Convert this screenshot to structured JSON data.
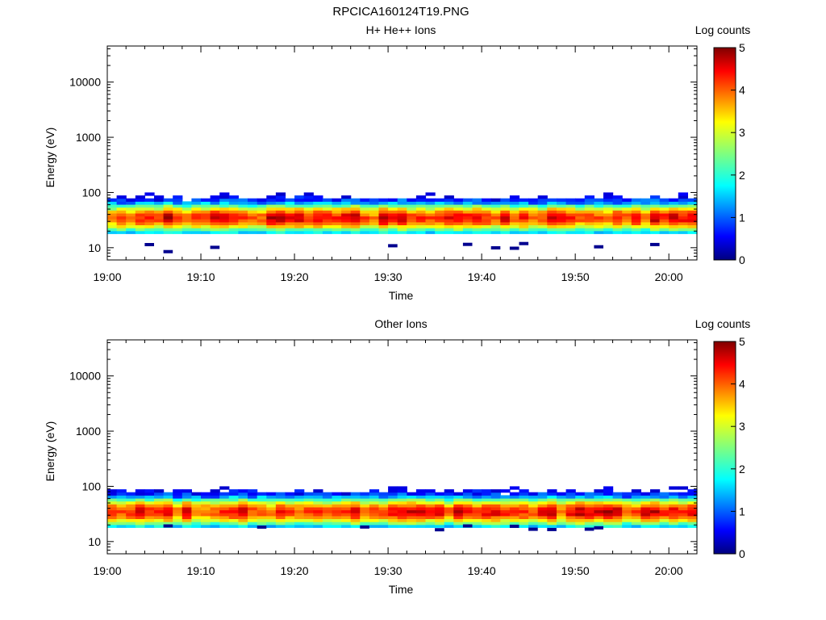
{
  "figure_title": "RPCICA160124T19.PNG",
  "chart_data": [
    {
      "type": "heatmap",
      "title": "H+ He++ Ions",
      "xlabel": "Time",
      "ylabel": "Energy (eV)",
      "x_ticks": [
        "19:00",
        "19:10",
        "19:20",
        "19:30",
        "19:40",
        "19:50",
        "20:00"
      ],
      "xlim": [
        "19:00",
        "20:03"
      ],
      "y_scale": "log",
      "y_ticks": [
        10,
        100,
        1000,
        10000
      ],
      "ylim": [
        6,
        45000
      ],
      "colorbar": {
        "label": "Log counts",
        "ticks": [
          0,
          1,
          2,
          3,
          4,
          5
        ],
        "range": [
          0,
          5
        ]
      },
      "grid": false,
      "energy_band_eV": [
        18,
        100
      ],
      "peak_log_counts": 4.3,
      "peak_energy_eV": 35,
      "sparse_low_energy_hits_eV": [
        8,
        12
      ]
    },
    {
      "type": "heatmap",
      "title": "Other Ions",
      "xlabel": "Time",
      "ylabel": "Energy (eV)",
      "x_ticks": [
        "19:00",
        "19:10",
        "19:20",
        "19:30",
        "19:40",
        "19:50",
        "20:00"
      ],
      "xlim": [
        "19:00",
        "20:03"
      ],
      "y_scale": "log",
      "y_ticks": [
        10,
        100,
        1000,
        10000
      ],
      "ylim": [
        6,
        45000
      ],
      "colorbar": {
        "label": "Log counts",
        "ticks": [
          0,
          1,
          2,
          3,
          4,
          5
        ],
        "range": [
          0,
          5
        ]
      },
      "grid": false,
      "energy_band_eV": [
        18,
        100
      ],
      "peak_log_counts": 4.3,
      "peak_energy_eV": 35,
      "sparse_low_energy_hits_eV": [
        16,
        20
      ]
    }
  ]
}
